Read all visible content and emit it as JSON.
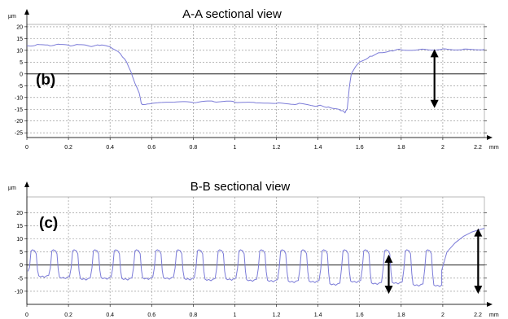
{
  "chart_data": [
    {
      "type": "line",
      "panel": "b",
      "title": "A-A sectional view",
      "x_unit": "mm",
      "y_unit": "µm",
      "xlim": [
        0,
        2.2
      ],
      "ylim": [
        -27,
        21
      ],
      "x_ticks": [
        0,
        0.2,
        0.4,
        0.6,
        0.8,
        1,
        1.2,
        1.4,
        1.6,
        1.8,
        2
      ],
      "x_tick_labels": [
        "0",
        "0.2",
        "0.4",
        "0.6",
        "0.8",
        "1",
        "1.2",
        "1.4",
        "1.6",
        "1.8",
        "2"
      ],
      "x_end_label": "2.2",
      "y_ticks": [
        20,
        15,
        10,
        5,
        0,
        -5,
        -10,
        -15,
        -20,
        -25
      ],
      "y_tick_labels": [
        "20",
        "15",
        "10",
        "5",
        "0",
        "-5",
        "-10",
        "-15",
        "-20",
        "-25"
      ],
      "grid": true,
      "series_color": "#7b7bd8",
      "series": [
        {
          "x": [
            0,
            0.05,
            0.1,
            0.15,
            0.2,
            0.25,
            0.3,
            0.35,
            0.4,
            0.45,
            0.48,
            0.5,
            0.52,
            0.54,
            0.55,
            0.56,
            0.6,
            0.7,
            0.8,
            0.9,
            1.0,
            1.1,
            1.2,
            1.3,
            1.4,
            1.45,
            1.5,
            1.53,
            1.54,
            1.55,
            1.56,
            1.58,
            1.6,
            1.65,
            1.7,
            1.75,
            1.8,
            1.9,
            2.0,
            2.1,
            2.2
          ],
          "y": [
            12,
            12.5,
            12.3,
            12.6,
            12.2,
            12.4,
            11.8,
            12.1,
            11.5,
            8.5,
            5,
            1,
            -4,
            -8,
            -12.5,
            -13,
            -12.5,
            -12,
            -12.2,
            -11.8,
            -12,
            -12.3,
            -12.5,
            -12.8,
            -13.5,
            -14,
            -15,
            -16.5,
            -15,
            -6,
            0,
            3,
            5,
            7.5,
            9,
            9.8,
            10.2,
            10.5,
            10.6,
            10.5,
            10.4
          ]
        }
      ],
      "annotation_arrow": {
        "x": 1.96,
        "y_from": 10.5,
        "y_to": -14.5
      }
    },
    {
      "type": "line",
      "panel": "c",
      "title": "B-B sectional view",
      "x_unit": "mm",
      "y_unit": "µm",
      "xlim": [
        0,
        2.2
      ],
      "ylim": [
        -15,
        26
      ],
      "x_ticks": [
        0,
        0.2,
        0.4,
        0.6,
        0.8,
        1,
        1.2,
        1.4,
        1.6,
        1.8,
        2
      ],
      "x_tick_labels": [
        "0",
        "0.2",
        "0.4",
        "0.6",
        "0.8",
        "1",
        "1.2",
        "1.4",
        "1.6",
        "1.8",
        "2"
      ],
      "x_end_label": "2.2",
      "y_ticks": [
        20,
        15,
        10,
        5,
        0,
        -5,
        -10
      ],
      "y_tick_labels": [
        "20",
        "15",
        "10",
        "5",
        "0",
        "-5",
        "-10"
      ],
      "grid": true,
      "series_color": "#7b7bd8",
      "square_wave": {
        "x_start": 0.005,
        "pitch": 0.1,
        "count": 20,
        "high": 5.8,
        "lows": [
          -4.5,
          -5,
          -5.5,
          -5.2,
          -5.5,
          -5.3,
          -5.2,
          -5.5,
          -5.8,
          -5.6,
          -6,
          -6.2,
          -6.5,
          -6.5,
          -7.5,
          -6.5,
          -7.2,
          -7,
          -7.8,
          -8
        ],
        "tail": {
          "x": [
            1.995,
            2.02,
            2.06,
            2.1,
            2.14,
            2.18,
            2.2
          ],
          "y": [
            -2,
            5,
            8.5,
            11,
            12.6,
            13.6,
            14
          ]
        }
      },
      "annotation_arrows": [
        {
          "x": 1.74,
          "y_from": 4,
          "y_to": -11
        },
        {
          "x": 2.17,
          "y_from": 14,
          "y_to": -11
        }
      ]
    }
  ]
}
